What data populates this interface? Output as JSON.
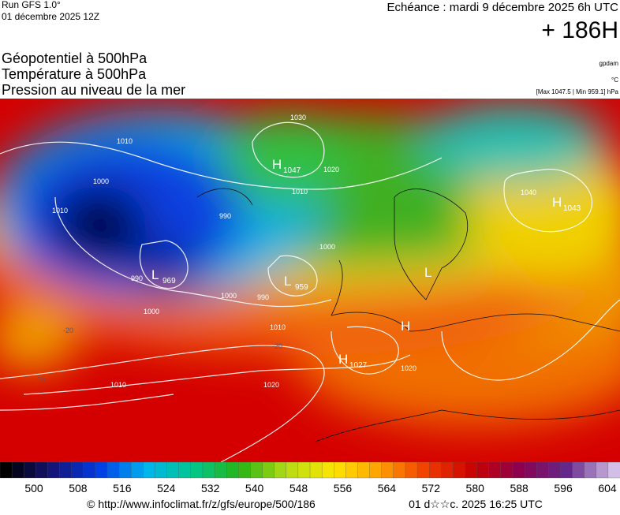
{
  "header": {
    "run": "Run GFS 1.0°",
    "date": "01 décembre 2025 12Z",
    "echeance": "Echéance : mardi 9 décembre 2025 6h UTC",
    "lead": "+ 186H",
    "titles": [
      "Géopotentiel à 500hPa",
      "Température à 500hPa",
      "Pression au niveau de la mer"
    ],
    "units": [
      "gpdam",
      "°C",
      "[Max 1047.5 | Min 959.1] hPa"
    ]
  },
  "map": {
    "centers": [
      {
        "kind": "H",
        "value": "1047"
      },
      {
        "kind": "L",
        "value": "969"
      },
      {
        "kind": "L",
        "value": "959"
      },
      {
        "kind": "H",
        "value": "1043"
      },
      {
        "kind": "H",
        "value": "1027"
      },
      {
        "kind": "L"
      },
      {
        "kind": "H"
      }
    ],
    "isobar_labels": [
      "1030",
      "1010",
      "1000",
      "990",
      "1020",
      "990",
      "1000",
      "990",
      "1000",
      "1010",
      "1010",
      "1020",
      "1040",
      "1010",
      "1020",
      "1000",
      "1010"
    ],
    "temp_labels": [
      "-20",
      "-20",
      "-10"
    ]
  },
  "colorbar": {
    "ticks": [
      "500",
      "508",
      "516",
      "524",
      "532",
      "540",
      "548",
      "556",
      "564",
      "572",
      "580",
      "588",
      "596",
      "604"
    ]
  },
  "footer": {
    "source": "© http://www.infoclimat.fr/z/gfs/europe/500/186",
    "stamp": "01 d☆☆c. 2025 16:25 UTC"
  }
}
